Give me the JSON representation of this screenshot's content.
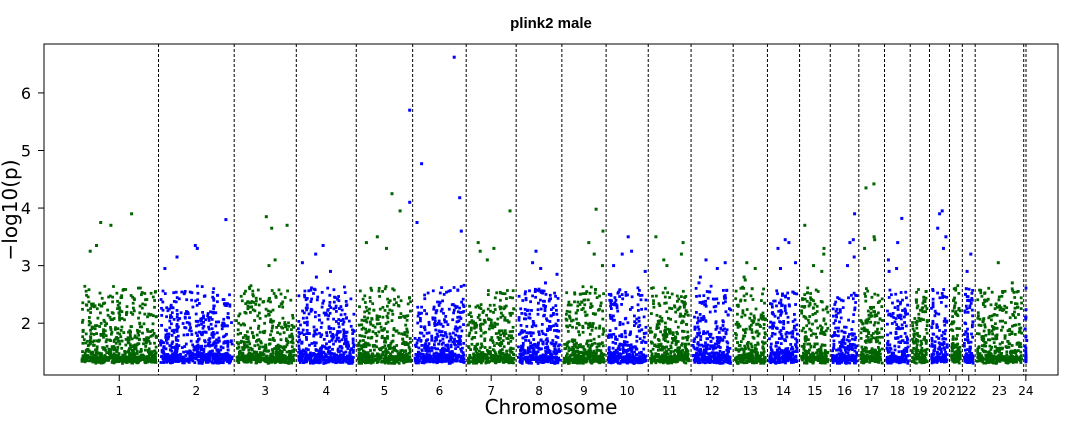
{
  "chart_data": {
    "type": "scatter",
    "title": "plink2 male",
    "xlabel": "Chromosome",
    "ylabel": "−log10(p)",
    "ylim": [
      1.1,
      6.85
    ],
    "yticks": [
      2,
      3,
      4,
      5,
      6
    ],
    "grid": false,
    "legend": "none",
    "point_min": 1.3,
    "colors": {
      "even": "#0000ff",
      "odd": "#006400"
    },
    "chromosomes": [
      {
        "label": "1",
        "size": 11.0,
        "max_pts": [
          3.9,
          3.75,
          3.7,
          3.35,
          3.25
        ]
      },
      {
        "label": "2",
        "size": 10.6,
        "max_pts": [
          3.8,
          3.35,
          3.3,
          3.15,
          2.95
        ]
      },
      {
        "label": "3",
        "size": 8.7,
        "max_pts": [
          3.85,
          3.7,
          3.65,
          3.1,
          3.0
        ]
      },
      {
        "label": "4",
        "size": 8.4,
        "max_pts": [
          3.35,
          3.2,
          3.05,
          2.9,
          2.8
        ]
      },
      {
        "label": "5",
        "size": 7.9,
        "max_pts": [
          4.25,
          3.95,
          3.5,
          3.4,
          3.3
        ]
      },
      {
        "label": "6",
        "size": 7.5,
        "max_pts": [
          6.62,
          4.77,
          4.18,
          3.75,
          3.6
        ]
      },
      {
        "label": "7",
        "size": 7.0,
        "max_pts": [
          3.95,
          3.4,
          3.3,
          3.25,
          3.1
        ]
      },
      {
        "label": "8",
        "size": 6.4,
        "max_pts": [
          3.25,
          3.05,
          2.95,
          2.85,
          2.7
        ]
      },
      {
        "label": "9",
        "size": 6.2,
        "max_pts": [
          3.98,
          3.6,
          3.4,
          3.2,
          3.0
        ]
      },
      {
        "label": "10",
        "size": 5.9,
        "max_pts": [
          3.5,
          3.25,
          3.2,
          3.0,
          2.9
        ]
      },
      {
        "label": "11",
        "size": 6.0,
        "max_pts": [
          3.5,
          3.4,
          3.2,
          3.1,
          3.0
        ]
      },
      {
        "label": "12",
        "size": 5.9,
        "max_pts": [
          3.1,
          3.05,
          2.95,
          2.8,
          2.7
        ]
      },
      {
        "label": "13",
        "size": 4.8,
        "max_pts": [
          3.05,
          2.95,
          2.8,
          2.75,
          2.6
        ]
      },
      {
        "label": "14",
        "size": 4.5,
        "max_pts": [
          3.45,
          3.4,
          3.3,
          3.05,
          2.95
        ]
      },
      {
        "label": "15",
        "size": 4.3,
        "max_pts": [
          3.7,
          3.3,
          3.2,
          3.0,
          2.9
        ]
      },
      {
        "label": "16",
        "size": 4.0,
        "max_pts": [
          3.9,
          3.45,
          3.4,
          3.15,
          3.0
        ]
      },
      {
        "label": "17",
        "size": 3.6,
        "max_pts": [
          4.42,
          4.35,
          3.5,
          3.45,
          3.3
        ]
      },
      {
        "label": "18",
        "size": 3.6,
        "max_pts": [
          3.82,
          3.4,
          3.1,
          2.95,
          2.9
        ]
      },
      {
        "label": "19",
        "size": 2.7,
        "max_pts": [
          2.55,
          2.45,
          2.4,
          2.3,
          2.2
        ]
      },
      {
        "label": "20",
        "size": 2.8,
        "max_pts": [
          3.95,
          3.9,
          3.65,
          3.5,
          3.3
        ]
      },
      {
        "label": "21",
        "size": 1.8,
        "max_pts": [
          2.4,
          2.3,
          2.2,
          2.15,
          2.0
        ]
      },
      {
        "label": "22",
        "size": 1.8,
        "max_pts": [
          3.2,
          2.9,
          2.6,
          2.5,
          2.4
        ]
      },
      {
        "label": "23",
        "size": 6.8,
        "max_pts": [
          3.05,
          2.7,
          2.55,
          2.4,
          2.3
        ]
      },
      {
        "label": "24",
        "size": 0.6,
        "max_pts": [
          1.9,
          1.7,
          1.6
        ]
      }
    ],
    "highlighted": [
      {
        "chr": "5",
        "value": 5.7
      },
      {
        "chr": "5",
        "value": 4.1
      }
    ]
  }
}
